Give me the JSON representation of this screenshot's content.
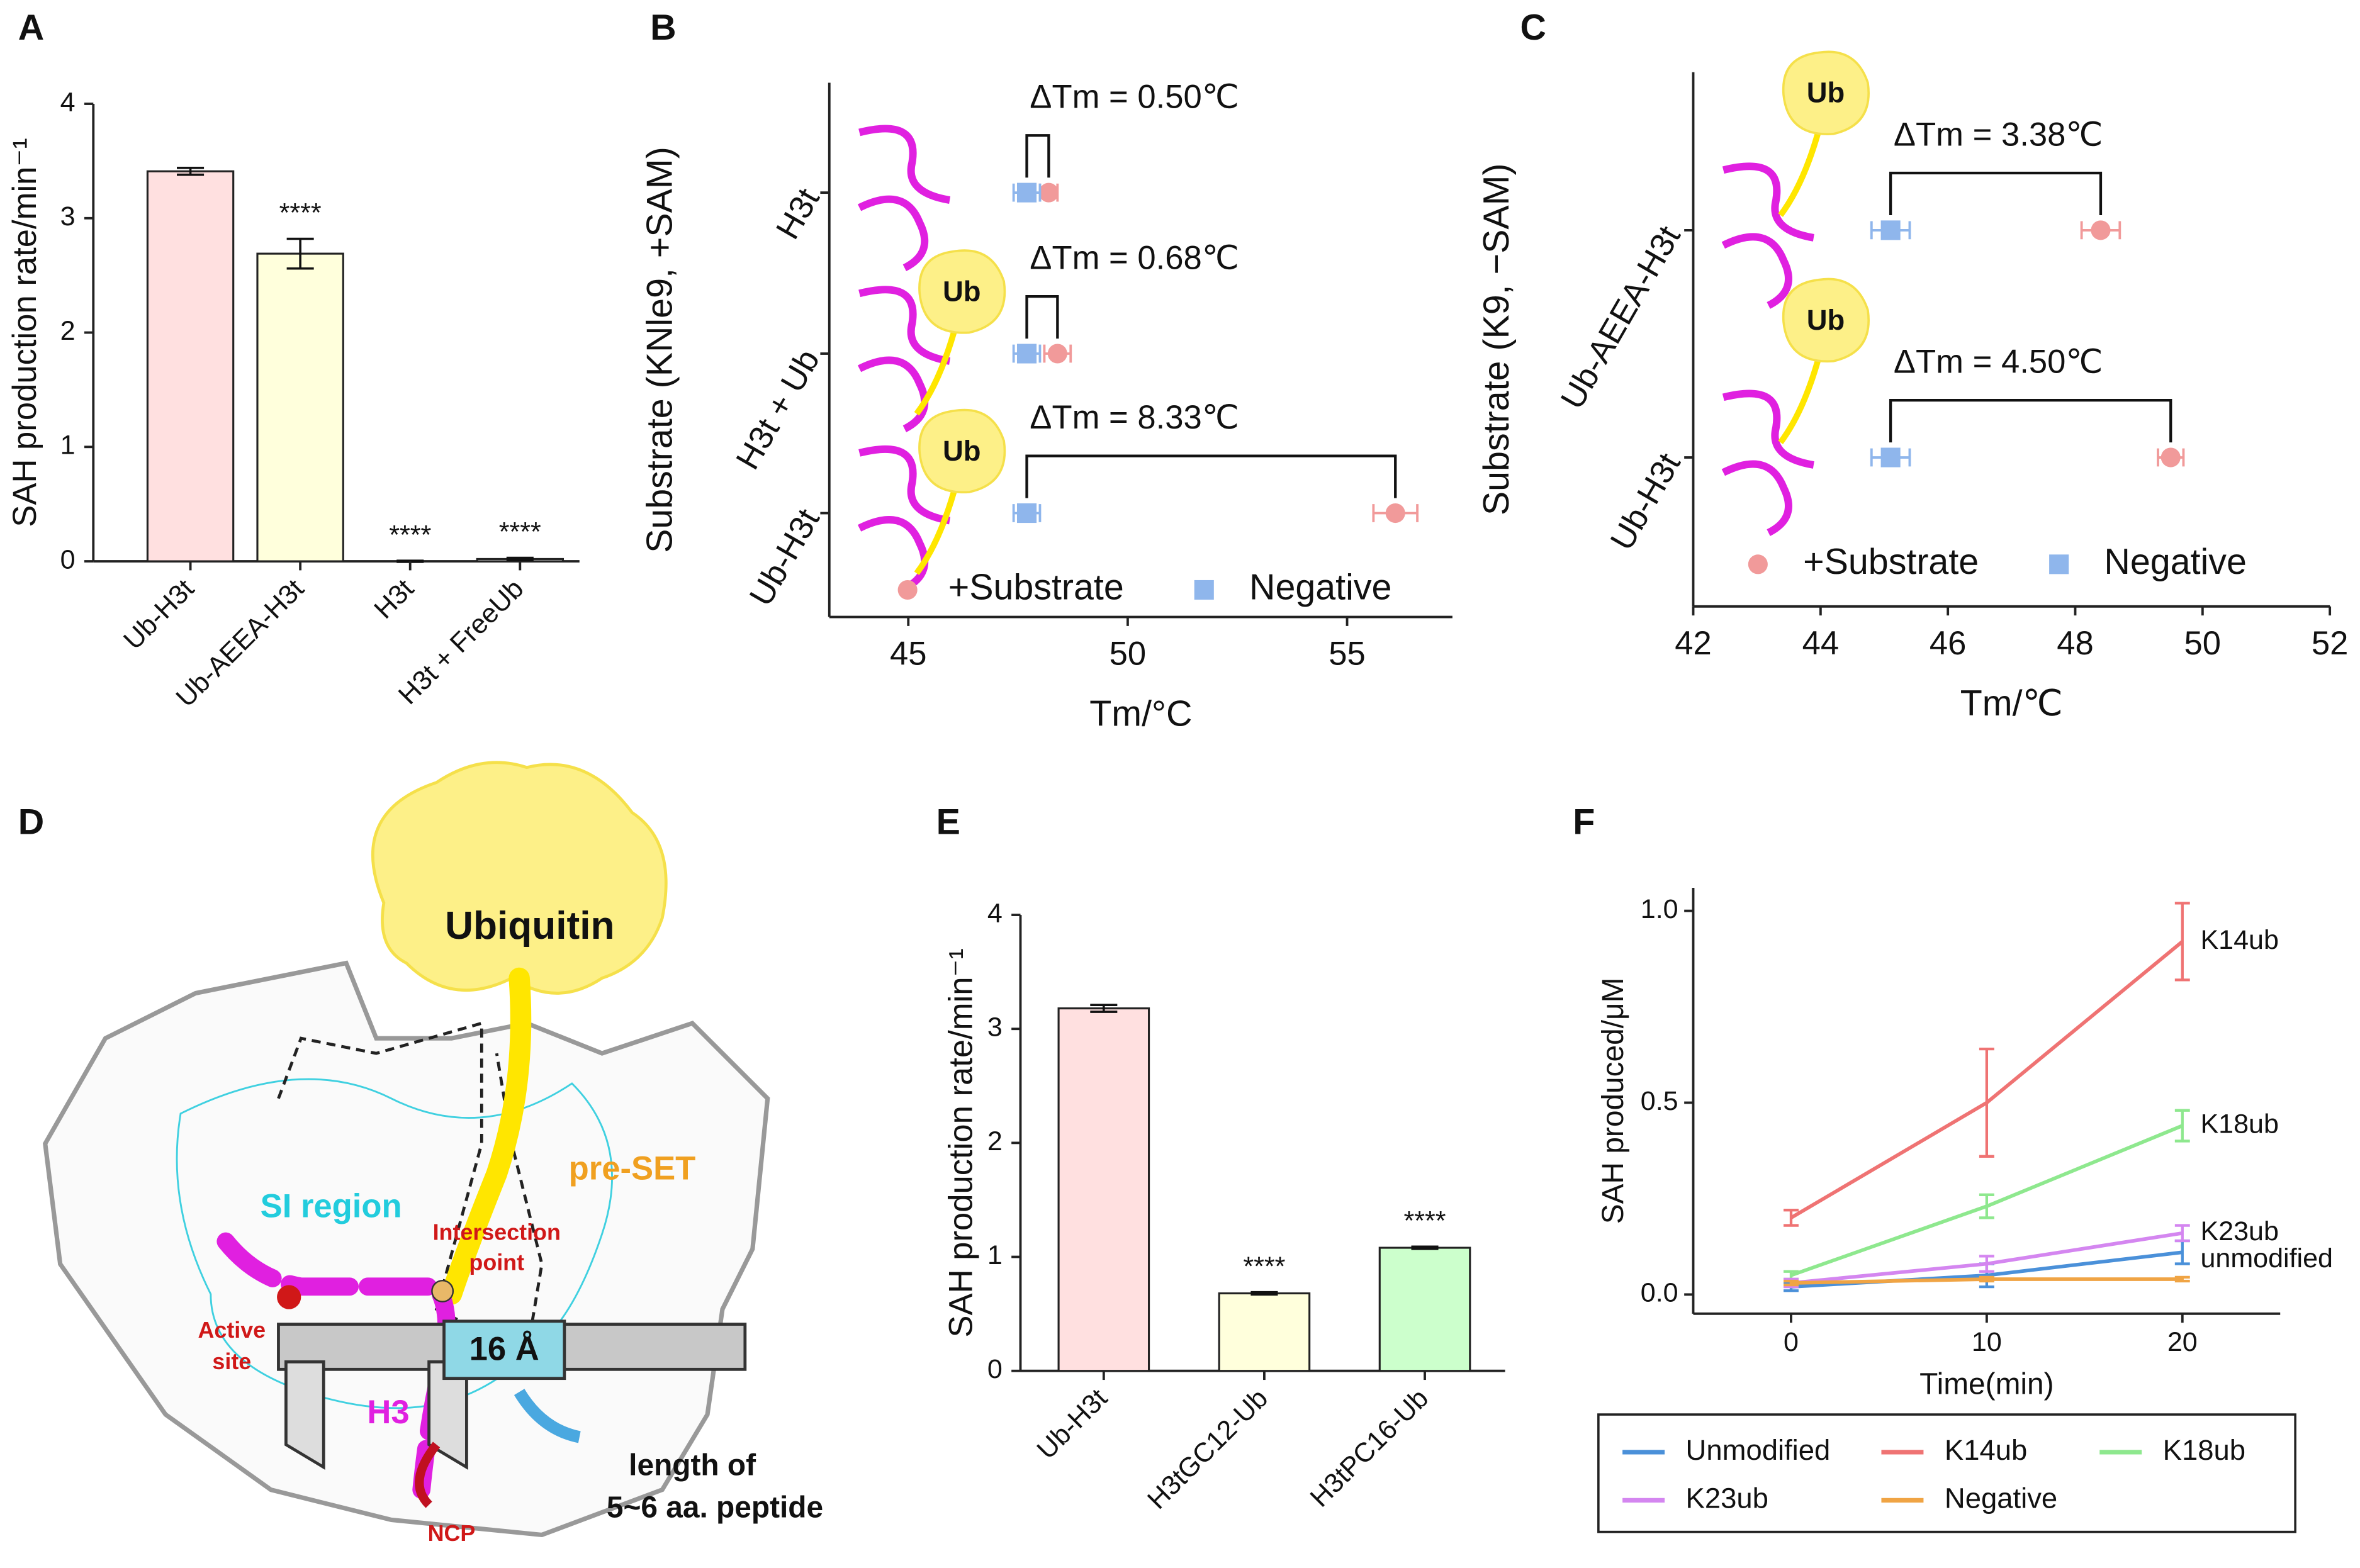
{
  "chart_data": [
    {
      "panel": "A",
      "type": "bar",
      "ylabel": "SAH production rate/min⁻¹",
      "categories": [
        "Ub-H3t",
        "Ub-AEEA-H3t",
        "H3t",
        "H3t + FreeUb"
      ],
      "values": [
        3.41,
        2.69,
        0.0,
        0.02
      ],
      "errors": [
        0.03,
        0.13,
        0.005,
        0.01
      ],
      "colors": [
        "#ffe0e0",
        "#ffffdc",
        "#ffffff",
        "#ffffff"
      ],
      "ylim": [
        0,
        4
      ],
      "yticks": [
        0,
        1,
        2,
        3,
        4
      ],
      "annotations": [
        {
          "text": "****",
          "category": "Ub-AEEA-H3t"
        },
        {
          "text": "****",
          "category": "H3t"
        },
        {
          "text": "****",
          "category": "H3t + FreeUb"
        }
      ]
    },
    {
      "panel": "B",
      "type": "dot",
      "ylabel": "Substrate (KNle9, +SAM)",
      "xlabel": "Tm/°C",
      "categories": [
        "H3t",
        "H3t + Ub",
        "Ub-H3t"
      ],
      "series": [
        {
          "name": "+Substrate",
          "color": "#f19a9a",
          "marker": "circle",
          "values": [
            48.2,
            48.4,
            56.1
          ],
          "errors": [
            0.2,
            0.3,
            0.5
          ]
        },
        {
          "name": "Negative",
          "color": "#8fb6ec",
          "marker": "square",
          "values": [
            47.7,
            47.7,
            47.7
          ],
          "errors": [
            0.3,
            0.3,
            0.3
          ]
        }
      ],
      "xlim": [
        43.2,
        57.4
      ],
      "xticks": [
        45,
        50,
        55
      ],
      "annotations": [
        {
          "text": "ΔTm = 0.50℃",
          "category": "H3t"
        },
        {
          "text": "ΔTm = 0.68℃",
          "category": "H3t + Ub"
        },
        {
          "text": "ΔTm = 8.33℃",
          "category": "Ub-H3t"
        }
      ],
      "shape_label": "Ub"
    },
    {
      "panel": "C",
      "type": "dot",
      "ylabel": "Substrate (K9, −SAM)",
      "xlabel": "Tm/℃",
      "categories": [
        "Ub-AEEA-H3t",
        "Ub-H3t"
      ],
      "series": [
        {
          "name": "+Substrate",
          "color": "#f19a9a",
          "marker": "circle",
          "values": [
            48.4,
            49.5
          ],
          "errors": [
            0.3,
            0.2
          ]
        },
        {
          "name": "Negative",
          "color": "#8fb6ec",
          "marker": "square",
          "values": [
            45.1,
            45.1
          ],
          "errors": [
            0.3,
            0.3
          ]
        }
      ],
      "xlim": [
        42,
        52
      ],
      "xticks": [
        42,
        44,
        46,
        48,
        50,
        52
      ],
      "annotations": [
        {
          "text": "ΔTm = 3.38℃",
          "category": "Ub-AEEA-H3t"
        },
        {
          "text": "ΔTm = 4.50℃",
          "category": "Ub-H3t"
        }
      ],
      "shape_label": "Ub"
    },
    {
      "panel": "E",
      "type": "bar",
      "ylabel": "SAH production rate/min⁻¹",
      "categories": [
        "Ub-H3t",
        "H3tGC12-Ub",
        "H3tPC16-Ub"
      ],
      "values": [
        3.18,
        0.68,
        1.08
      ],
      "errors": [
        0.03,
        0.01,
        0.01
      ],
      "colors": [
        "#ffe0e0",
        "#ffffdc",
        "#ccffcc"
      ],
      "ylim": [
        0,
        4
      ],
      "yticks": [
        0,
        1,
        2,
        3,
        4
      ],
      "annotations": [
        {
          "text": "****",
          "category": "H3tGC12-Ub"
        },
        {
          "text": "****",
          "category": "H3tPC16-Ub"
        }
      ]
    },
    {
      "panel": "F",
      "type": "line",
      "xlabel": "Time(min)",
      "ylabel": "SAH produced/μM",
      "x": [
        0,
        10,
        20
      ],
      "series": [
        {
          "name": "Unmodified",
          "color": "#4a90d9",
          "values": [
            0.02,
            0.05,
            0.11
          ],
          "errors": [
            0.01,
            0.03,
            0.03
          ]
        },
        {
          "name": "K14ub",
          "color": "#ef7373",
          "values": [
            0.2,
            0.5,
            0.92
          ],
          "errors": [
            0.02,
            0.14,
            0.1
          ]
        },
        {
          "name": "K18ub",
          "color": "#8ee88e",
          "values": [
            0.05,
            0.23,
            0.44
          ],
          "errors": [
            0.01,
            0.03,
            0.04
          ]
        },
        {
          "name": "K23ub",
          "color": "#d486f0",
          "values": [
            0.03,
            0.08,
            0.16
          ],
          "errors": [
            0.01,
            0.02,
            0.02
          ]
        },
        {
          "name": "Negative",
          "color": "#f0a444",
          "values": [
            0.03,
            0.04,
            0.04
          ],
          "errors": [
            0.005,
            0.005,
            0.005
          ]
        }
      ],
      "xlim": [
        -5,
        25
      ],
      "xticks": [
        0,
        10,
        20
      ],
      "ylim": [
        -0.05,
        1.06
      ],
      "yticks": [
        {
          "value": 0,
          "label": "0.0"
        },
        {
          "value": 0.5,
          "label": "0.5"
        },
        {
          "value": 1,
          "label": "1.0"
        }
      ],
      "annotations": [
        {
          "text": "K14ub",
          "series": "K14ub"
        },
        {
          "text": "K18ub",
          "series": "K18ub"
        },
        {
          "text": "K23ub",
          "series": "K23ub"
        },
        {
          "text": "unmodified",
          "series": "Unmodified"
        }
      ]
    }
  ],
  "diagram": {
    "panel": "D",
    "ubiquitin": "Ubiquitin",
    "si_region": "SI region",
    "pre_set": "pre-SET",
    "intersection": [
      "Intersection",
      "point"
    ],
    "active_site": [
      "Active",
      "site"
    ],
    "h3": "H3",
    "distance": "16 Å",
    "note": [
      "length of",
      "5~6 aa. peptide"
    ],
    "ncp": "NCP"
  }
}
